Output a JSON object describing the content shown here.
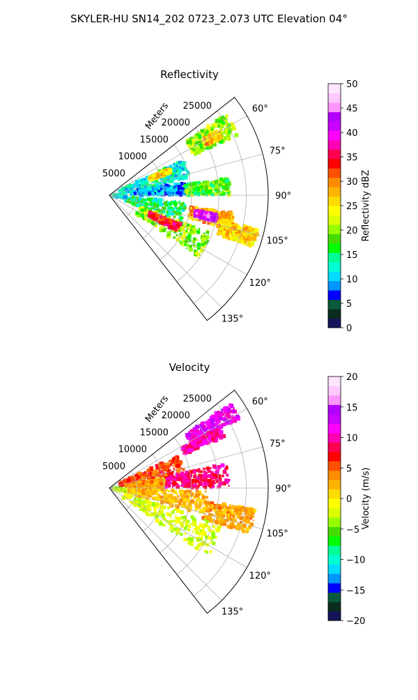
{
  "suptitle": "SKYLER-HU  SN14_202  0723_2.073 UTC Elevation 04°",
  "chart_data": [
    {
      "type": "heatmap",
      "projection": "polar-sector",
      "title": "Reflectivity",
      "radial_label": "Meters",
      "radial_ticks": [
        "5000",
        "10000",
        "15000",
        "20000",
        "25000"
      ],
      "radial_values": [
        5000,
        10000,
        15000,
        20000,
        25000
      ],
      "angle_ticks": [
        "60°",
        "75°",
        "90°",
        "105°",
        "120°",
        "135°"
      ],
      "angle_values": [
        60,
        75,
        90,
        105,
        120,
        135
      ],
      "angle_range": [
        52,
        142
      ],
      "r_max": 29000,
      "grid": true,
      "colorbar": {
        "label": "Reflectivity dBZ",
        "range": [
          0,
          50
        ],
        "ticks": [
          "0",
          "5",
          "10",
          "15",
          "20",
          "25",
          "30",
          "35",
          "40",
          "45",
          "50"
        ],
        "colors": [
          "#14145a",
          "#0a2d1e",
          "#0a5a3c",
          "#0000ff",
          "#0096ff",
          "#00dcff",
          "#00ffd2",
          "#00ff96",
          "#00ff00",
          "#46dc00",
          "#96ff00",
          "#dcff00",
          "#ffff00",
          "#ffdc00",
          "#ffb400",
          "#ff8c00",
          "#ff5000",
          "#ff0000",
          "#ff0050",
          "#ff00b4",
          "#ff00ff",
          "#c800ff",
          "#b400ff",
          "#ff96ff",
          "#ffc8ff",
          "#ffe6ff"
        ]
      },
      "echo_regions": [
        {
          "az": [
            55,
            65
          ],
          "r": [
            17000,
            26000
          ],
          "dbz": 20
        },
        {
          "az": [
            59,
            63
          ],
          "r": [
            20000,
            23000
          ],
          "dbz": 27
        },
        {
          "az": [
            64,
            78
          ],
          "r": [
            2000,
            15000
          ],
          "dbz": 12
        },
        {
          "az": [
            66,
            70
          ],
          "r": [
            8000,
            12000
          ],
          "dbz": 26
        },
        {
          "az": [
            80,
            90
          ],
          "r": [
            4000,
            14000
          ],
          "dbz": 10
        },
        {
          "az": [
            82,
            90
          ],
          "r": [
            14000,
            22000
          ],
          "dbz": 18
        },
        {
          "az": [
            95,
            110
          ],
          "r": [
            3000,
            14000
          ],
          "dbz": 15
        },
        {
          "az": [
            98,
            106
          ],
          "r": [
            15000,
            23000
          ],
          "dbz": 28
        },
        {
          "az": [
            100,
            104
          ],
          "r": [
            16000,
            20000
          ],
          "dbz": 42
        },
        {
          "az": [
            103,
            110
          ],
          "r": [
            21000,
            28000
          ],
          "dbz": 26
        },
        {
          "az": [
            110,
            125
          ],
          "r": [
            6000,
            20000
          ],
          "dbz": 20
        },
        {
          "az": [
            112,
            118
          ],
          "r": [
            8000,
            14000
          ],
          "dbz": 34
        },
        {
          "az": [
            88,
            100
          ],
          "r": [
            0,
            3000
          ],
          "dbz": 12
        }
      ]
    },
    {
      "type": "heatmap",
      "projection": "polar-sector",
      "title": "Velocity",
      "radial_label": "Meters",
      "radial_ticks": [
        "5000",
        "10000",
        "15000",
        "20000",
        "25000"
      ],
      "radial_values": [
        5000,
        10000,
        15000,
        20000,
        25000
      ],
      "angle_ticks": [
        "60°",
        "75°",
        "90°",
        "105°",
        "120°",
        "135°"
      ],
      "angle_values": [
        60,
        75,
        90,
        105,
        120,
        135
      ],
      "angle_range": [
        52,
        142
      ],
      "r_max": 29000,
      "grid": true,
      "colorbar": {
        "label": "Velocity (m/s)",
        "range": [
          -20,
          20
        ],
        "ticks": [
          "−20",
          "−15",
          "−10",
          "−5",
          "0",
          "5",
          "10",
          "15",
          "20"
        ],
        "colors": [
          "#14145a",
          "#0a2d1e",
          "#0a5a3c",
          "#0000ff",
          "#0096ff",
          "#00dcff",
          "#00ffd2",
          "#00ff96",
          "#00ff00",
          "#46dc00",
          "#96ff00",
          "#dcff00",
          "#ffff00",
          "#ffdc00",
          "#ffb400",
          "#ff8c00",
          "#ff5000",
          "#ff0000",
          "#ff0050",
          "#ff00b4",
          "#ff00ff",
          "#c800ff",
          "#b400ff",
          "#ff96ff",
          "#ffc8ff",
          "#ffe6ff"
        ]
      },
      "echo_regions": [
        {
          "az": [
            55,
            62
          ],
          "r": [
            17000,
            27000
          ],
          "vel": 12
        },
        {
          "az": [
            61,
            66
          ],
          "r": [
            15000,
            23000
          ],
          "vel": 10
        },
        {
          "az": [
            64,
            78
          ],
          "r": [
            2000,
            14000
          ],
          "vel": 6
        },
        {
          "az": [
            78,
            90
          ],
          "r": [
            10000,
            22000
          ],
          "vel": 9
        },
        {
          "az": [
            80,
            92
          ],
          "r": [
            3000,
            10000
          ],
          "vel": 3
        },
        {
          "az": [
            92,
            106
          ],
          "r": [
            3000,
            18000
          ],
          "vel": 2
        },
        {
          "az": [
            98,
            108
          ],
          "r": [
            18000,
            27000
          ],
          "vel": 3
        },
        {
          "az": [
            108,
            125
          ],
          "r": [
            3000,
            22000
          ],
          "vel": -2
        },
        {
          "az": [
            94,
            102
          ],
          "r": [
            0,
            3000
          ],
          "vel": -3
        }
      ]
    }
  ]
}
